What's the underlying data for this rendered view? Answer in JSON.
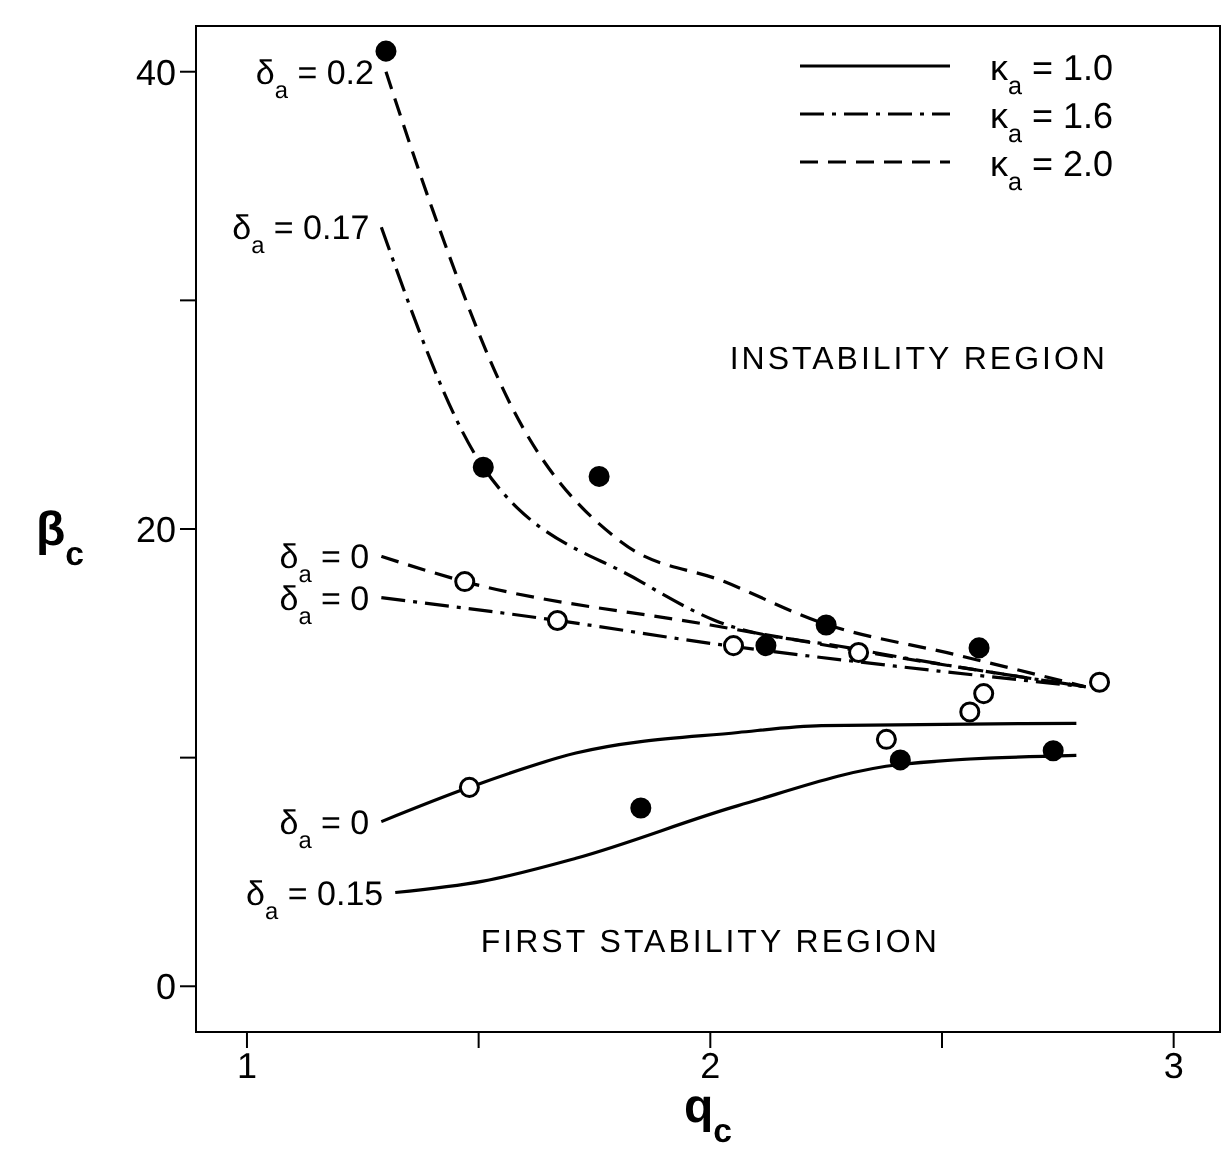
{
  "chart_data": {
    "type": "line",
    "xlabel": "q$_{c}$",
    "ylabel": "β$_{c}$",
    "xlim": [
      0.89,
      3.1
    ],
    "ylim": [
      -2,
      42
    ],
    "xticks": [
      1,
      {
        "value": 1.5,
        "label": null
      },
      2,
      {
        "value": 2.5,
        "label": null
      },
      3
    ],
    "yticks": [
      0,
      {
        "value": 10,
        "label": null
      },
      20,
      {
        "value": 30,
        "label": null
      },
      40
    ],
    "grid": false,
    "legend": "top right",
    "series": [
      {
        "name": "κ$_{a}$ = 1.0",
        "color": "#000000",
        "line_style": "solid",
        "marker": "none",
        "x": [
          1.29,
          1.48,
          1.71,
          2.06,
          2.24,
          2.79
        ],
        "values": [
          7.2,
          8.7,
          10.2,
          11.1,
          11.4,
          11.5
        ]
      },
      {
        "color": "#000000",
        "line_style": "solid",
        "marker": "none",
        "x": [
          1.32,
          1.51,
          1.71,
          2.06,
          2.41,
          2.79
        ],
        "values": [
          4.1,
          4.6,
          5.6,
          7.9,
          9.7,
          10.1
        ]
      },
      {
        "name": "κ$_{a}$ = 1.6",
        "color": "#000000",
        "line_style": "dashdot",
        "marker": "none",
        "x": [
          1.29,
          1.51,
          1.85,
          2.01,
          2.3,
          2.81
        ],
        "values": [
          33.2,
          22.7,
          17.7,
          16.0,
          14.8,
          13.1
        ]
      },
      {
        "color": "#000000",
        "line_style": "dashdot",
        "marker": "none",
        "x": [
          1.29,
          1.67,
          2.0,
          2.4,
          2.81
        ],
        "values": [
          17.0,
          16.0,
          15.0,
          14.0,
          13.1
        ]
      },
      {
        "name": "κ$_{a}$ = 2.0",
        "color": "#000000",
        "line_style": "dashed",
        "marker": "none",
        "x": [
          1.3,
          1.4,
          1.57,
          1.81,
          2.03,
          2.24,
          2.53,
          2.81
        ],
        "values": [
          40,
          34,
          25.4,
          19.4,
          17.7,
          15.9,
          14.5,
          13.1
        ]
      },
      {
        "color": "#000000",
        "line_style": "dashed",
        "marker": "none",
        "x": [
          1.29,
          1.47,
          2.0,
          2.4,
          2.81
        ],
        "values": [
          18.8,
          17.7,
          15.8,
          14.4,
          13.1
        ]
      },
      {
        "type": "scatter",
        "color": "#000000",
        "marker": "circle",
        "x": [
          1.3,
          1.51,
          1.76,
          1.85,
          2.12,
          2.25,
          2.41,
          2.58,
          2.74
        ],
        "values": [
          40.9,
          22.7,
          22.3,
          7.8,
          14.9,
          15.8,
          9.9,
          14.8,
          10.3
        ]
      },
      {
        "type": "scatter",
        "color": "#ffffff",
        "marker": "circle",
        "x": [
          1.47,
          1.48,
          1.67,
          2.05,
          2.32,
          2.38,
          2.56,
          2.59,
          2.84
        ],
        "values": [
          17.7,
          8.7,
          16.0,
          14.9,
          14.6,
          10.8,
          12.0,
          12.8,
          13.3
        ]
      }
    ],
    "annotations": [
      {
        "text": "δ$_{a}$ = 0.2",
        "x": 1.3,
        "y": 40
      },
      {
        "text": "δ$_{a}$ = 0.17",
        "x": 1.29,
        "y": 33.2
      },
      {
        "text": "δ$_{a}$ = 0",
        "x": 1.29,
        "y": 18.8
      },
      {
        "text": "δ$_{a}$ = 0",
        "x": 1.29,
        "y": 17.0
      },
      {
        "text": "δ$_{a}$ = 0",
        "x": 1.29,
        "y": 7.2
      },
      {
        "text": "δ$_{a}$ = 0.15",
        "x": 1.32,
        "y": 4.1
      },
      "INSTABILITY REGION",
      "FIRST STABILITY REGION"
    ]
  }
}
